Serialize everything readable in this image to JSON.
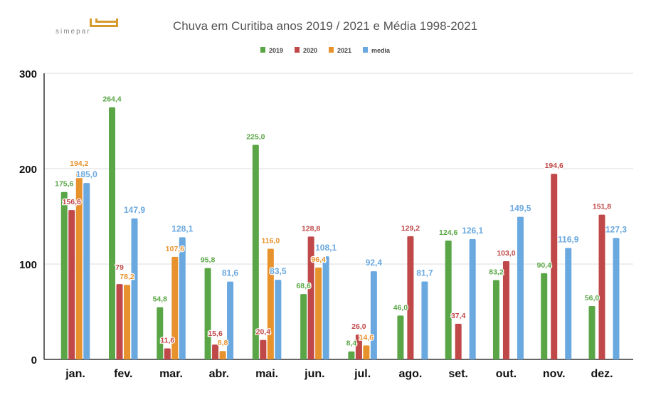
{
  "logo": {
    "text": "SIMEPAR"
  },
  "chart_data": {
    "type": "bar",
    "title": "Chuva em Curitiba anos 2019 / 2021 e Média 1998-2021",
    "categories": [
      "jan.",
      "fev.",
      "mar.",
      "abr.",
      "mai.",
      "jun.",
      "jul.",
      "ago.",
      "set.",
      "out.",
      "nov.",
      "dez."
    ],
    "series": [
      {
        "name": "2019",
        "color": "#5aa646",
        "values": [
          175.6,
          264.4,
          54.8,
          95.8,
          225.0,
          68.6,
          8.4,
          46.0,
          124.6,
          83.2,
          90.4,
          56.0
        ]
      },
      {
        "name": "2020",
        "color": "#c14848",
        "values": [
          156.6,
          79.0,
          11.6,
          15.6,
          20.4,
          128.8,
          26.0,
          129.2,
          37.4,
          103.0,
          194.6,
          151.8
        ]
      },
      {
        "name": "2021",
        "color": "#e8922e",
        "values": [
          194.2,
          78.2,
          107.6,
          8.8,
          116.0,
          96.4,
          14.6,
          null,
          null,
          null,
          null,
          null
        ]
      },
      {
        "name": "media",
        "color": "#6aa8e0",
        "values": [
          185.0,
          147.9,
          128.1,
          81.6,
          83.5,
          108.1,
          92.4,
          81.7,
          126.1,
          149.5,
          116.9,
          127.3
        ]
      }
    ],
    "data_labels": [
      [
        "175,6",
        "264,4",
        "54,8",
        "95,8",
        "225,0",
        "68,6",
        "8,4",
        "46,0",
        "124,6",
        "83,2",
        "90,4",
        "56,0"
      ],
      [
        "156,6",
        "79",
        "11,6",
        "15,6",
        "20,4",
        "128,8",
        "26,0",
        "129,2",
        "37,4",
        "103,0",
        "194,6",
        "151,8"
      ],
      [
        "194,2",
        "78,2",
        "107,6",
        "8,8",
        "116,0",
        "96,4",
        "14,6",
        null,
        null,
        null,
        null,
        null
      ],
      [
        "185,0",
        "147,9",
        "128,1",
        "81,6",
        "83,5",
        "108,1",
        "92,4",
        "81,7",
        "126,1",
        "149,5",
        "116,9",
        "127,3"
      ]
    ],
    "yticks": [
      "0",
      "100",
      "200",
      "300"
    ],
    "ylim": [
      0,
      300
    ],
    "grid": true,
    "legend_position": "top-center",
    "xlabel": "",
    "ylabel": ""
  }
}
